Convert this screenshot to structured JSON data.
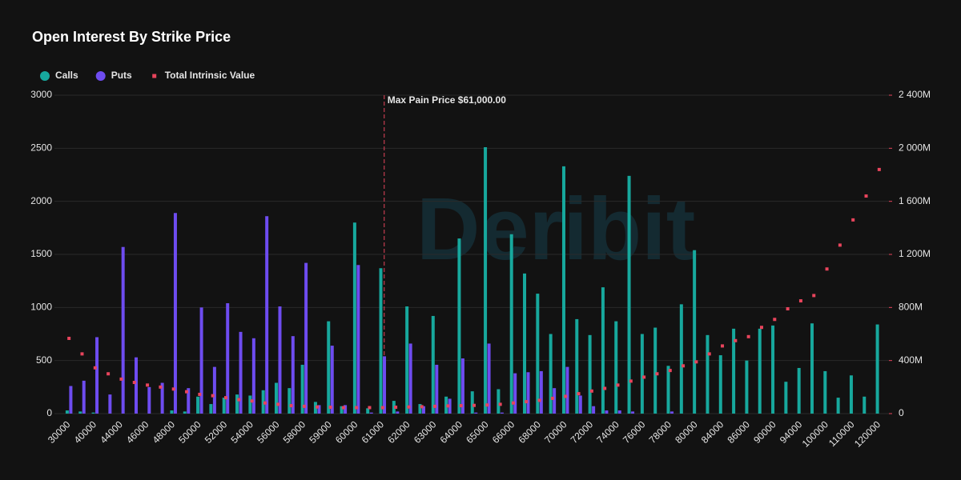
{
  "chart_data": {
    "type": "bar",
    "title": "Open Interest By Strike Price",
    "watermark": "Deribit",
    "categories": [
      "30000",
      null,
      "40000",
      null,
      "44000",
      null,
      "46000",
      null,
      "48000",
      null,
      "50000",
      null,
      "52000",
      null,
      "54000",
      null,
      "56000",
      null,
      "58000",
      null,
      "59000",
      null,
      "60000",
      null,
      "61000",
      null,
      "62000",
      null,
      "63000",
      null,
      "64000",
      null,
      "65000",
      null,
      "66000",
      null,
      "68000",
      null,
      "70000",
      null,
      "72000",
      null,
      "74000",
      null,
      "76000",
      null,
      "78000",
      null,
      "80000",
      null,
      "84000",
      null,
      "86000",
      null,
      "90000",
      null,
      "94000",
      null,
      "100000",
      null,
      "110000",
      null,
      "120000"
    ],
    "series": [
      {
        "name": "Calls",
        "color": "#17a89d",
        "values": [
          30,
          20,
          10,
          0,
          0,
          0,
          0,
          0,
          30,
          20,
          160,
          90,
          150,
          180,
          170,
          220,
          290,
          240,
          460,
          110,
          870,
          70,
          1800,
          50,
          1370,
          120,
          1010,
          90,
          920,
          160,
          1650,
          210,
          2510,
          230,
          1690,
          1320,
          1130,
          750,
          2330,
          890,
          740,
          1190,
          870,
          2240,
          750,
          810,
          450,
          1030,
          1540,
          740,
          550,
          800,
          500,
          800,
          830,
          300,
          430,
          850,
          400,
          150,
          360,
          160,
          840
        ]
      },
      {
        "name": "Puts",
        "color": "#6e4cf0",
        "values": [
          260,
          310,
          720,
          180,
          1570,
          530,
          250,
          290,
          1890,
          240,
          1000,
          440,
          1040,
          770,
          710,
          1860,
          1010,
          730,
          1420,
          80,
          640,
          80,
          1400,
          10,
          540,
          20,
          660,
          70,
          460,
          140,
          520,
          10,
          660,
          10,
          380,
          390,
          400,
          240,
          440,
          170,
          70,
          30,
          30,
          20,
          0,
          0,
          20,
          0,
          0,
          0,
          0,
          0,
          0,
          0,
          0,
          0,
          0,
          0,
          0,
          0,
          0,
          0,
          0
        ]
      },
      {
        "name": "Total Intrinsic Value",
        "color": "#e8445c",
        "axis": "y2",
        "marker": "square",
        "values": [
          567,
          450,
          345,
          300,
          260,
          235,
          215,
          200,
          185,
          165,
          145,
          135,
          120,
          105,
          95,
          80,
          70,
          60,
          55,
          50,
          48,
          45,
          45,
          45,
          45,
          48,
          50,
          52,
          55,
          58,
          60,
          62,
          65,
          70,
          80,
          90,
          100,
          115,
          130,
          150,
          170,
          190,
          215,
          245,
          275,
          300,
          325,
          360,
          390,
          450,
          510,
          550,
          580,
          650,
          710,
          790,
          850,
          890,
          1090,
          1270,
          1460,
          1640,
          1840
        ]
      }
    ],
    "ylim": [
      0,
      3000
    ],
    "yticks": [
      0,
      500,
      1000,
      1500,
      2000,
      2500,
      3000
    ],
    "y2lim": [
      0,
      2400
    ],
    "y2ticks": [
      0,
      {
        "value": 400,
        "label": "400M"
      },
      {
        "value": 800,
        "label": "800M"
      },
      {
        "value": 1200,
        "label": "1 200M"
      },
      {
        "value": 1600,
        "label": "1 600M"
      },
      {
        "value": 2000,
        "label": "2 000M"
      },
      {
        "value": 2400,
        "label": "2 400M"
      }
    ],
    "y2color": "#e8445c",
    "grid": true,
    "legend": "top-left",
    "annotation": {
      "text": "Max Pain Price $61,000.00",
      "x": "61000",
      "color": "#e8445c"
    }
  }
}
